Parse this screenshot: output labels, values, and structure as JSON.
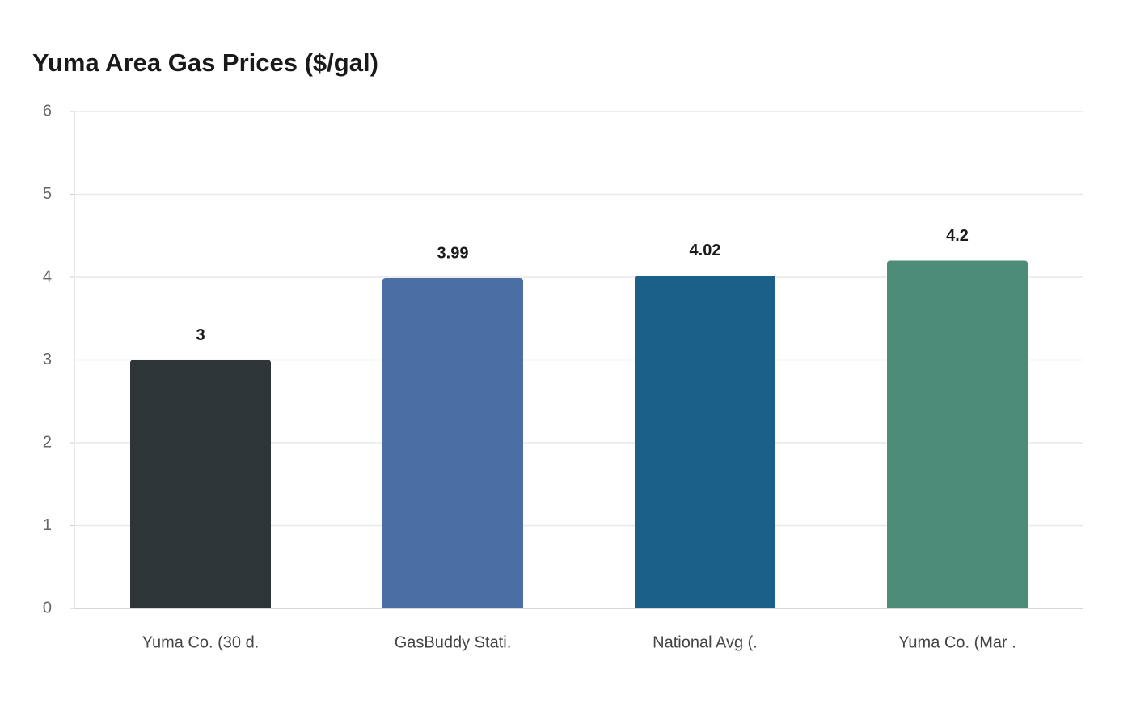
{
  "chart_data": {
    "type": "bar",
    "title": "Yuma Area Gas Prices ($/gal)",
    "categories": [
      "Yuma Co. (30 d.",
      "GasBuddy Stati.",
      "National Avg (.",
      "Yuma Co. (Mar ."
    ],
    "values": [
      3,
      3.99,
      4.02,
      4.2
    ],
    "colors": [
      "#2e3538",
      "#4a6fa5",
      "#1a6088",
      "#4e8c7a"
    ],
    "ylim": [
      0,
      6
    ],
    "yticks": [
      0,
      1,
      2,
      3,
      4,
      5,
      6
    ],
    "grid": true
  }
}
